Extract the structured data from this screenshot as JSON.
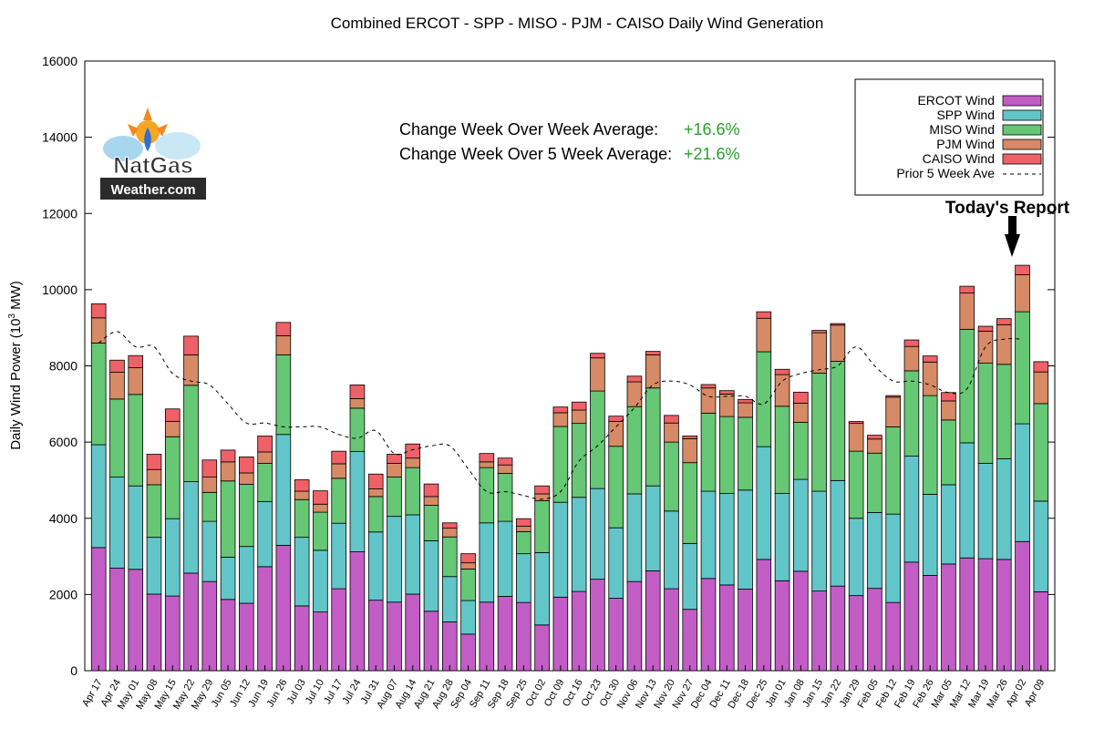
{
  "chart_data": {
    "type": "bar",
    "stacked": true,
    "title": "Combined ERCOT - SPP - MISO - PJM - CAISO Daily Wind Generation",
    "ylabel": "Daily Wind Power (10^3 MW)",
    "ylabel_base": "Daily Wind Power (10",
    "ylabel_sup": "3",
    "ylabel_unit": " MW)",
    "ylim": [
      0,
      16000
    ],
    "yticks": [
      0,
      2000,
      4000,
      6000,
      8000,
      10000,
      12000,
      14000,
      16000
    ],
    "categories": [
      "Apr 17",
      "Apr 24",
      "May 01",
      "May 08",
      "May 15",
      "May 22",
      "May 29",
      "Jun 05",
      "Jun 12",
      "Jun 19",
      "Jun 26",
      "Jul 03",
      "Jul 10",
      "Jul 17",
      "Jul 24",
      "Jul 31",
      "Aug 07",
      "Aug 14",
      "Aug 21",
      "Aug 28",
      "Sep 04",
      "Sep 11",
      "Sep 18",
      "Sep 25",
      "Oct 02",
      "Oct 09",
      "Oct 16",
      "Oct 23",
      "Oct 30",
      "Nov 06",
      "Nov 13",
      "Nov 20",
      "Nov 27",
      "Dec 04",
      "Dec 11",
      "Dec 18",
      "Dec 25",
      "Jan 01",
      "Jan 08",
      "Jan 15",
      "Jan 22",
      "Jan 29",
      "Feb 05",
      "Feb 12",
      "Feb 19",
      "Feb 26",
      "Mar 05",
      "Mar 12",
      "Mar 19",
      "Mar 26",
      "Apr 02",
      "Apr 09"
    ],
    "series": [
      {
        "name": "ERCOT Wind",
        "color": "#c35dc6",
        "values": [
          3230,
          2690,
          2660,
          2010,
          1960,
          2560,
          2340,
          1870,
          1770,
          2730,
          3290,
          1700,
          1540,
          2150,
          3120,
          1850,
          1800,
          2010,
          1560,
          1280,
          960,
          1800,
          1950,
          1790,
          1200,
          1930,
          2080,
          2400,
          1900,
          2340,
          2620,
          2150,
          1610,
          2420,
          2250,
          2140,
          2920,
          2360,
          2610,
          2090,
          2220,
          1970,
          2160,
          1790,
          2850,
          2500,
          2800,
          2960,
          2940,
          2920,
          3390,
          2070
        ]
      },
      {
        "name": "SPP Wind",
        "color": "#62c6c9",
        "values": [
          2700,
          2390,
          2190,
          1490,
          2030,
          2400,
          1580,
          1110,
          1490,
          1710,
          2910,
          1800,
          1620,
          1720,
          2630,
          1790,
          2250,
          2080,
          1850,
          1190,
          880,
          2080,
          1970,
          1280,
          1900,
          2490,
          2470,
          2380,
          1850,
          2300,
          2230,
          2040,
          1730,
          2290,
          2400,
          2600,
          2960,
          2290,
          2410,
          2620,
          2770,
          2030,
          1990,
          2320,
          2780,
          2130,
          2080,
          3020,
          2500,
          2640,
          3090,
          2380
        ]
      },
      {
        "name": "MISO Wind",
        "color": "#66c774",
        "values": [
          2670,
          2050,
          2400,
          1380,
          2150,
          2530,
          760,
          2000,
          1630,
          1000,
          2090,
          990,
          1000,
          1180,
          1140,
          930,
          1030,
          1240,
          930,
          1040,
          830,
          1450,
          1260,
          580,
          1360,
          1990,
          1940,
          2560,
          2140,
          2290,
          2570,
          1810,
          2120,
          2050,
          2020,
          1910,
          2490,
          2290,
          1500,
          3100,
          3130,
          1760,
          1560,
          2290,
          2240,
          2590,
          1700,
          2980,
          2630,
          2480,
          2940,
          2560
        ]
      },
      {
        "name": "PJM Wind",
        "color": "#d68a65",
        "values": [
          660,
          700,
          700,
          400,
          400,
          800,
          400,
          500,
          300,
          300,
          500,
          220,
          210,
          380,
          250,
          200,
          360,
          250,
          230,
          230,
          160,
          150,
          220,
          140,
          180,
          360,
          350,
          870,
          650,
          650,
          870,
          500,
          630,
          660,
          590,
          380,
          880,
          830,
          500,
          1060,
          950,
          730,
          370,
          780,
          640,
          880,
          500,
          950,
          840,
          1040,
          970,
          830
        ]
      },
      {
        "name": "CAISO Wind",
        "color": "#ee6166",
        "values": [
          370,
          320,
          320,
          400,
          330,
          490,
          450,
          310,
          420,
          420,
          350,
          300,
          350,
          330,
          360,
          390,
          240,
          370,
          330,
          140,
          240,
          220,
          180,
          200,
          210,
          150,
          210,
          120,
          140,
          150,
          90,
          200,
          70,
          90,
          90,
          90,
          170,
          140,
          290,
          60,
          40,
          50,
          100,
          40,
          170,
          160,
          220,
          180,
          130,
          160,
          250,
          270
        ]
      }
    ],
    "prior_5_week_ave": {
      "name": "Prior 5 Week Ave",
      "values": [
        8600,
        8900,
        8500,
        8500,
        7800,
        7600,
        7500,
        7000,
        6500,
        6500,
        6400,
        6400,
        6400,
        6200,
        6100,
        6300,
        5700,
        5800,
        5900,
        5900,
        5300,
        4700,
        4700,
        4600,
        4500,
        4700,
        5500,
        5900,
        6400,
        6900,
        7500,
        7600,
        7500,
        7200,
        7200,
        7200,
        7000,
        7600,
        7800,
        7900,
        8000,
        8500,
        8000,
        7600,
        7600,
        7500,
        7300,
        7400,
        8500,
        8700,
        8700,
        null
      ]
    },
    "legend_position": "top-right",
    "grid": false
  },
  "annotations": {
    "wow_label": "Change Week Over Week Average:",
    "wow_value": "+16.6%",
    "w5_label": "Change Week Over 5 Week Average:",
    "w5_value": "+21.6%",
    "report_label": "Today's Report"
  },
  "logo": {
    "line1": "NatGas",
    "line2": "Weather.com"
  },
  "colors": {
    "positive": "#27a02a",
    "axis": "#000000"
  }
}
